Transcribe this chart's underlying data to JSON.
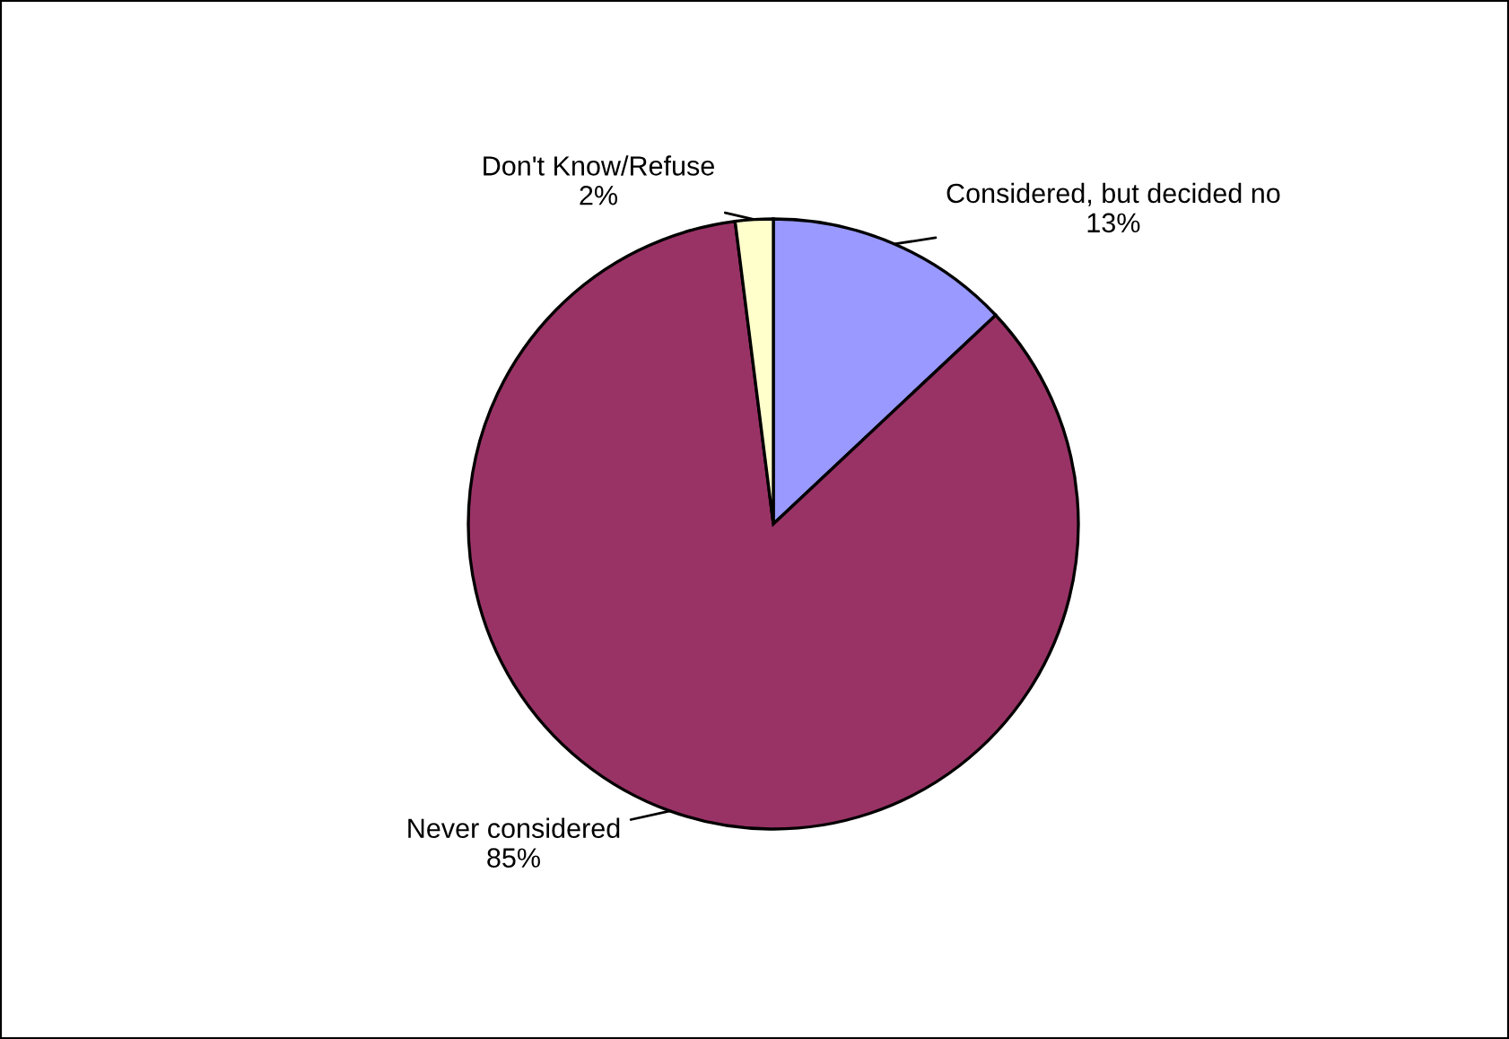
{
  "chart_data": {
    "type": "pie",
    "categories": [
      "Considered, but decided no",
      "Never considered",
      "Don't Know/Refuse"
    ],
    "values": [
      13,
      85,
      2
    ],
    "colors": [
      "#9999ff",
      "#993366",
      "#ffffcc"
    ],
    "value_labels": [
      "13%",
      "85%",
      "2%"
    ]
  }
}
